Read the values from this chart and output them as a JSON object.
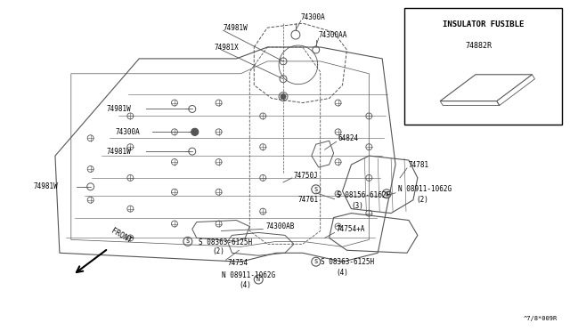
{
  "bg_color": "#ffffff",
  "line_color": "#555555",
  "text_color": "#000000",
  "inset_title": "INSULATOR FUSIBLE",
  "inset_part": "74882R",
  "diagram_code": "^7/8*009R",
  "front_label": "FRONT"
}
